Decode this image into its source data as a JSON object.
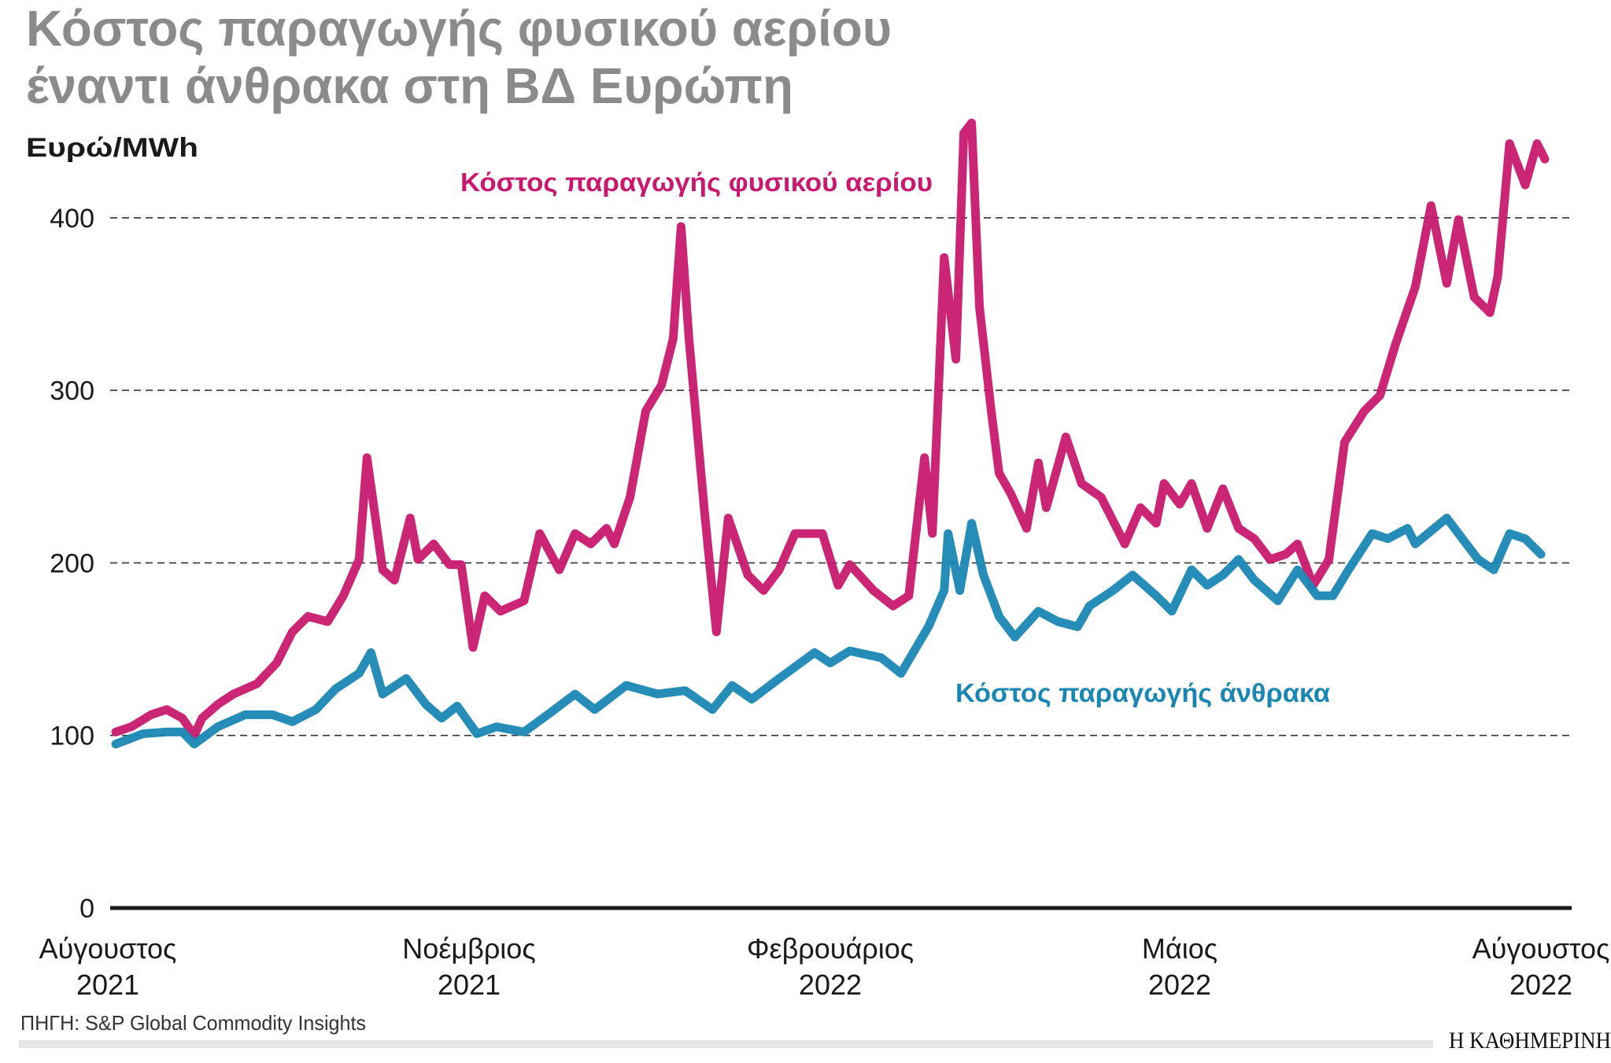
{
  "title": {
    "line1": "Κόστος παραγωγής φυσικού αερίου",
    "line2": "έναντι άνθρακα στη ΒΔ Ευρώπη"
  },
  "source": "ΠΗΓΗ: S&P Global Commodity Insights",
  "logo": "Η ΚΑΘΗΜΕΡΙΝΗ",
  "chart_data": {
    "type": "line",
    "title": "Κόστος παραγωγής φυσικού αερίου έναντι άνθρακα στη ΒΔ Ευρώπη",
    "ylabel": "Ευρώ/MWh",
    "xlabel": "",
    "ylim": [
      0,
      450
    ],
    "yticks": [
      0,
      100,
      200,
      300,
      400
    ],
    "xlim": [
      "2021-08-01",
      "2022-08-01"
    ],
    "xticks": [
      {
        "date": "2021-08-01",
        "month": "Αύγουστος",
        "year": "2021"
      },
      {
        "date": "2021-11-01",
        "month": "Νοέμβριος",
        "year": "2021"
      },
      {
        "date": "2022-02-01",
        "month": "Φεβρουάριος",
        "year": "2022"
      },
      {
        "date": "2022-05-01",
        "month": "Μάιος",
        "year": "2022"
      },
      {
        "date": "2022-08-01",
        "month": "Αύγουστος",
        "year": "2022"
      }
    ],
    "grid": "horizontal dashed",
    "series": [
      {
        "name": "Κόστος παραγωγής φυσικού αερίου",
        "color": "#c8196e",
        "points": [
          [
            "2021-08-03",
            102
          ],
          [
            "2021-08-07",
            105
          ],
          [
            "2021-08-12",
            112
          ],
          [
            "2021-08-16",
            115
          ],
          [
            "2021-08-20",
            110
          ],
          [
            "2021-08-23",
            100
          ],
          [
            "2021-08-25",
            110
          ],
          [
            "2021-08-29",
            118
          ],
          [
            "2021-09-02",
            124
          ],
          [
            "2021-09-08",
            130
          ],
          [
            "2021-09-13",
            142
          ],
          [
            "2021-09-17",
            160
          ],
          [
            "2021-09-21",
            169
          ],
          [
            "2021-09-26",
            166
          ],
          [
            "2021-09-30",
            181
          ],
          [
            "2021-10-04",
            202
          ],
          [
            "2021-10-06",
            261
          ],
          [
            "2021-10-10",
            196
          ],
          [
            "2021-10-13",
            190
          ],
          [
            "2021-10-17",
            226
          ],
          [
            "2021-10-19",
            202
          ],
          [
            "2021-10-23",
            211
          ],
          [
            "2021-10-27",
            199
          ],
          [
            "2021-10-30",
            199
          ],
          [
            "2021-11-02",
            151
          ],
          [
            "2021-11-05",
            181
          ],
          [
            "2021-11-09",
            172
          ],
          [
            "2021-11-15",
            178
          ],
          [
            "2021-11-19",
            217
          ],
          [
            "2021-11-24",
            196
          ],
          [
            "2021-11-28",
            217
          ],
          [
            "2021-12-02",
            211
          ],
          [
            "2021-12-06",
            220
          ],
          [
            "2021-12-08",
            211
          ],
          [
            "2021-12-12",
            238
          ],
          [
            "2021-12-16",
            288
          ],
          [
            "2021-12-20",
            303
          ],
          [
            "2021-12-23",
            330
          ],
          [
            "2021-12-25",
            395
          ],
          [
            "2021-12-27",
            330
          ],
          [
            "2021-12-31",
            229
          ],
          [
            "2022-01-03",
            160
          ],
          [
            "2022-01-06",
            226
          ],
          [
            "2022-01-11",
            193
          ],
          [
            "2022-01-15",
            184
          ],
          [
            "2022-01-19",
            196
          ],
          [
            "2022-01-23",
            217
          ],
          [
            "2022-01-30",
            217
          ],
          [
            "2022-02-03",
            187
          ],
          [
            "2022-02-06",
            199
          ],
          [
            "2022-02-12",
            184
          ],
          [
            "2022-02-17",
            175
          ],
          [
            "2022-02-21",
            181
          ],
          [
            "2022-02-25",
            261
          ],
          [
            "2022-02-27",
            217
          ],
          [
            "2022-03-02",
            377
          ],
          [
            "2022-03-05",
            318
          ],
          [
            "2022-03-07",
            449
          ],
          [
            "2022-03-09",
            455
          ],
          [
            "2022-03-11",
            348
          ],
          [
            "2022-03-14",
            288
          ],
          [
            "2022-03-16",
            252
          ],
          [
            "2022-03-19",
            240
          ],
          [
            "2022-03-23",
            220
          ],
          [
            "2022-03-26",
            258
          ],
          [
            "2022-03-28",
            232
          ],
          [
            "2022-04-02",
            273
          ],
          [
            "2022-04-06",
            246
          ],
          [
            "2022-04-11",
            238
          ],
          [
            "2022-04-17",
            211
          ],
          [
            "2022-04-21",
            232
          ],
          [
            "2022-04-25",
            223
          ],
          [
            "2022-04-27",
            246
          ],
          [
            "2022-05-01",
            234
          ],
          [
            "2022-05-04",
            246
          ],
          [
            "2022-05-08",
            220
          ],
          [
            "2022-05-12",
            243
          ],
          [
            "2022-05-16",
            220
          ],
          [
            "2022-05-20",
            214
          ],
          [
            "2022-05-24",
            202
          ],
          [
            "2022-05-28",
            205
          ],
          [
            "2022-05-31",
            211
          ],
          [
            "2022-06-04",
            187
          ],
          [
            "2022-06-08",
            202
          ],
          [
            "2022-06-12",
            270
          ],
          [
            "2022-06-17",
            288
          ],
          [
            "2022-06-21",
            297
          ],
          [
            "2022-06-25",
            327
          ],
          [
            "2022-06-30",
            360
          ],
          [
            "2022-07-04",
            407
          ],
          [
            "2022-07-08",
            362
          ],
          [
            "2022-07-11",
            399
          ],
          [
            "2022-07-15",
            354
          ],
          [
            "2022-07-19",
            345
          ],
          [
            "2022-07-21",
            366
          ],
          [
            "2022-07-24",
            443
          ],
          [
            "2022-07-28",
            419
          ],
          [
            "2022-07-31",
            443
          ],
          [
            "2022-08-02",
            434
          ]
        ]
      },
      {
        "name": "Κόστος παραγωγής άνθρακα",
        "color": "#1a86b4",
        "points": [
          [
            "2021-08-03",
            95
          ],
          [
            "2021-08-10",
            101
          ],
          [
            "2021-08-16",
            102
          ],
          [
            "2021-08-20",
            102
          ],
          [
            "2021-08-23",
            95
          ],
          [
            "2021-08-29",
            105
          ],
          [
            "2021-09-05",
            112
          ],
          [
            "2021-09-12",
            112
          ],
          [
            "2021-09-17",
            108
          ],
          [
            "2021-09-23",
            115
          ],
          [
            "2021-09-28",
            127
          ],
          [
            "2021-10-04",
            136
          ],
          [
            "2021-10-07",
            148
          ],
          [
            "2021-10-10",
            124
          ],
          [
            "2021-10-16",
            133
          ],
          [
            "2021-10-21",
            118
          ],
          [
            "2021-10-25",
            110
          ],
          [
            "2021-10-29",
            117
          ],
          [
            "2021-11-03",
            101
          ],
          [
            "2021-11-08",
            105
          ],
          [
            "2021-11-15",
            102
          ],
          [
            "2021-11-21",
            112
          ],
          [
            "2021-11-28",
            124
          ],
          [
            "2021-12-03",
            115
          ],
          [
            "2021-12-11",
            129
          ],
          [
            "2021-12-19",
            124
          ],
          [
            "2021-12-26",
            126
          ],
          [
            "2022-01-02",
            115
          ],
          [
            "2022-01-07",
            129
          ],
          [
            "2022-01-12",
            121
          ],
          [
            "2022-01-19",
            133
          ],
          [
            "2022-01-28",
            148
          ],
          [
            "2022-02-01",
            142
          ],
          [
            "2022-02-06",
            149
          ],
          [
            "2022-02-14",
            145
          ],
          [
            "2022-02-19",
            136
          ],
          [
            "2022-02-26",
            163
          ],
          [
            "2022-03-02",
            184
          ],
          [
            "2022-03-03",
            217
          ],
          [
            "2022-03-06",
            184
          ],
          [
            "2022-03-09",
            223
          ],
          [
            "2022-03-12",
            193
          ],
          [
            "2022-03-16",
            169
          ],
          [
            "2022-03-20",
            157
          ],
          [
            "2022-03-26",
            172
          ],
          [
            "2022-03-31",
            166
          ],
          [
            "2022-04-05",
            163
          ],
          [
            "2022-04-08",
            175
          ],
          [
            "2022-04-14",
            184
          ],
          [
            "2022-04-19",
            193
          ],
          [
            "2022-04-25",
            181
          ],
          [
            "2022-04-29",
            172
          ],
          [
            "2022-05-04",
            196
          ],
          [
            "2022-05-08",
            187
          ],
          [
            "2022-05-12",
            193
          ],
          [
            "2022-05-16",
            202
          ],
          [
            "2022-05-20",
            190
          ],
          [
            "2022-05-26",
            178
          ],
          [
            "2022-05-31",
            196
          ],
          [
            "2022-06-05",
            181
          ],
          [
            "2022-06-09",
            181
          ],
          [
            "2022-06-13",
            196
          ],
          [
            "2022-06-19",
            217
          ],
          [
            "2022-06-23",
            214
          ],
          [
            "2022-06-28",
            220
          ],
          [
            "2022-06-30",
            211
          ],
          [
            "2022-07-08",
            226
          ],
          [
            "2022-07-12",
            214
          ],
          [
            "2022-07-16",
            202
          ],
          [
            "2022-07-20",
            196
          ],
          [
            "2022-07-24",
            217
          ],
          [
            "2022-07-28",
            214
          ],
          [
            "2022-08-01",
            205
          ]
        ]
      }
    ]
  }
}
